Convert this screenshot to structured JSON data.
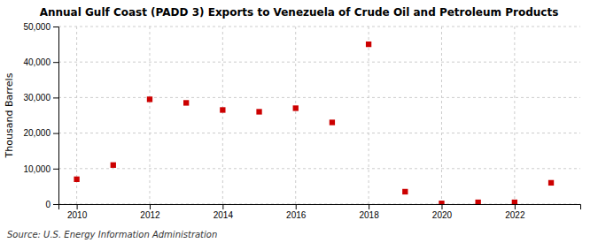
{
  "chart_data": {
    "type": "scatter",
    "title": "Annual Gulf Coast (PADD 3) Exports to Venezuela of Crude Oil and Petroleum Products",
    "y_label": "Thousand Barrels",
    "annotations": [
      "Source: U.S. Energy Information Administration"
    ],
    "x": [
      2010,
      2011,
      2012,
      2013,
      2014,
      2015,
      2016,
      2017,
      2018,
      2019,
      2020,
      2021,
      2022,
      2023
    ],
    "values": [
      7000,
      11000,
      29500,
      28500,
      26500,
      26000,
      27000,
      23000,
      45000,
      3500,
      200,
      500,
      500,
      6000
    ],
    "color": "#cc0000",
    "marker": "square",
    "xlim": [
      2009.5,
      2023.8
    ],
    "ylim": [
      0,
      50000
    ],
    "xticks": [
      2010,
      2012,
      2014,
      2016,
      2018,
      2020,
      2022
    ],
    "yticks": [
      0,
      {
        "value": 10000,
        "label": "10,000"
      },
      {
        "value": 20000,
        "label": "20,000"
      },
      {
        "value": 30000,
        "label": "30,000"
      },
      {
        "value": 40000,
        "label": "40,000"
      },
      {
        "value": 50000,
        "label": "50,000"
      }
    ],
    "grid": true
  }
}
